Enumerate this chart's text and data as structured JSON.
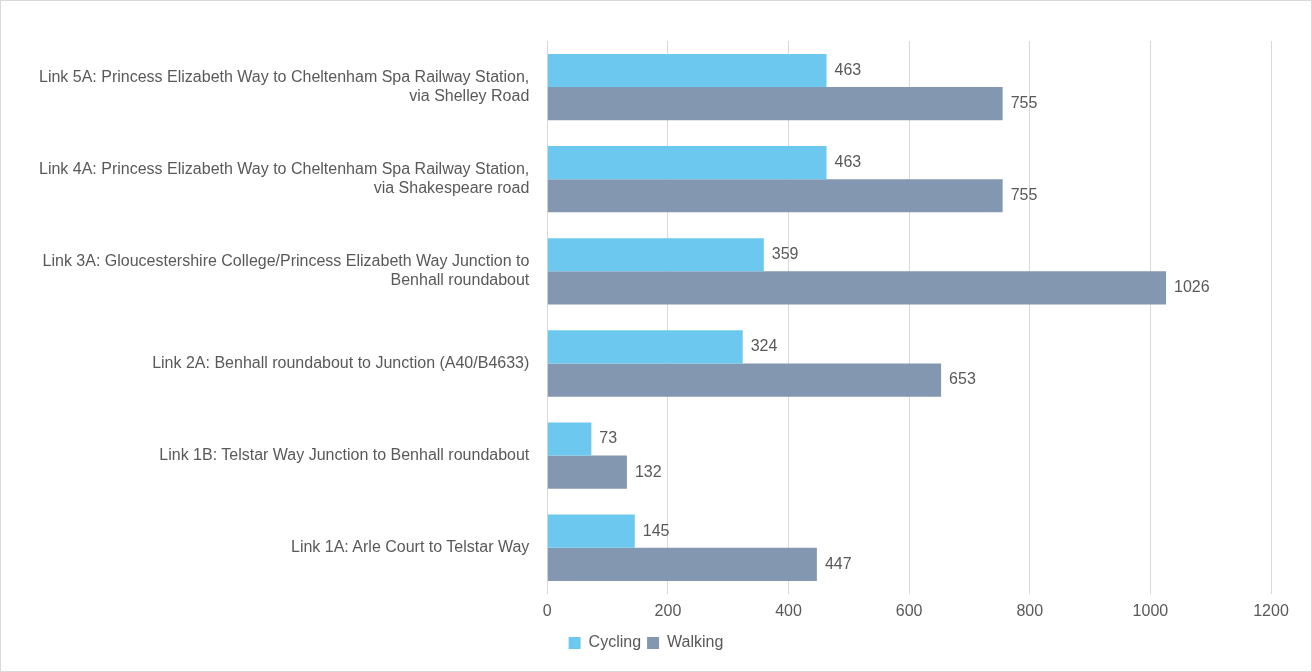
{
  "chart_data": {
    "type": "bar",
    "orientation": "horizontal",
    "categories": [
      "Link 5A: Princess Elizabeth Way to Cheltenham Spa Railway Station, via Shelley Road",
      "Link 4A: Princess Elizabeth Way to Cheltenham Spa Railway Station, via Shakespeare road",
      "Link 3A: Gloucestershire College/Princess Elizabeth Way Junction to Benhall roundabout",
      "Link 2A: Benhall roundabout to Junction (A40/B4633)",
      "Link 1B: Telstar Way Junction to Benhall roundabout",
      "Link 1A: Arle Court to Telstar Way"
    ],
    "series": [
      {
        "name": "Cycling",
        "color": "#6cc8ee",
        "values": [
          463,
          463,
          359,
          324,
          73,
          145
        ]
      },
      {
        "name": "Walking",
        "color": "#8497b0",
        "values": [
          755,
          755,
          1026,
          653,
          132,
          447
        ]
      }
    ],
    "xlim": [
      0,
      1200
    ],
    "xticks": [
      0,
      200,
      400,
      600,
      800,
      1000,
      1200
    ],
    "grid": "x",
    "legend": "bottom",
    "data_labels": true
  }
}
